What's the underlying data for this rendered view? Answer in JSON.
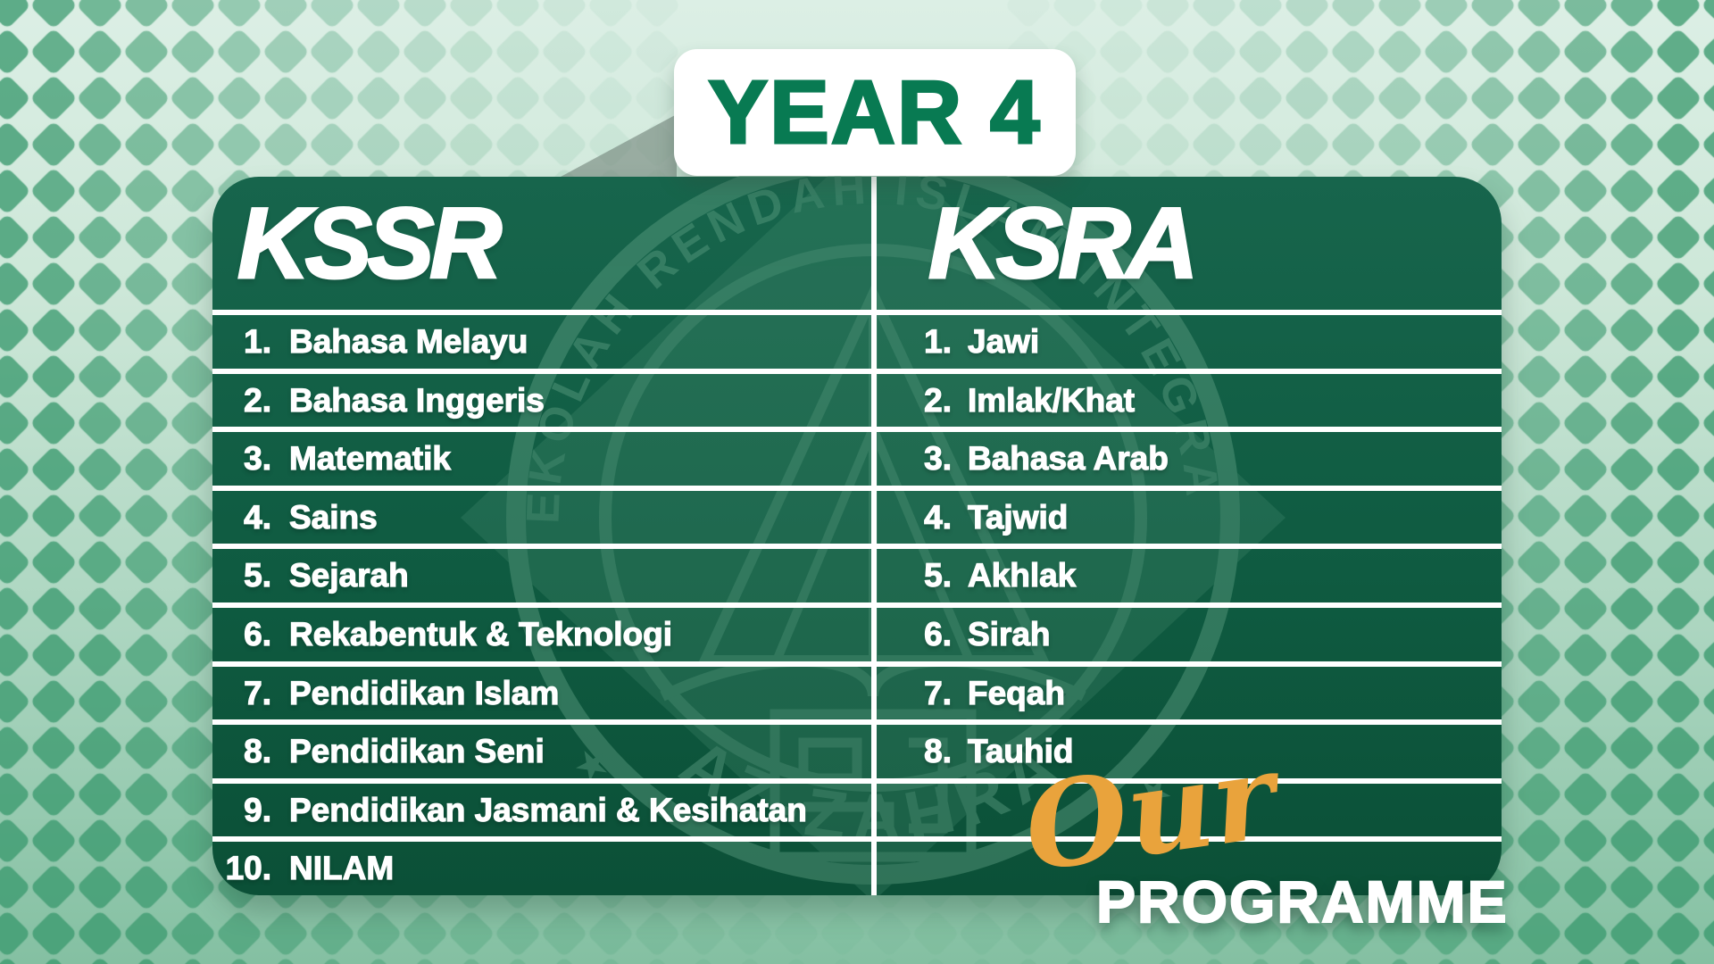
{
  "title": {
    "text": "YEAR 4"
  },
  "columns": [
    {
      "header": "KSSR",
      "items": [
        {
          "num": "1.",
          "label": "Bahasa Melayu"
        },
        {
          "num": "2.",
          "label": "Bahasa Inggeris"
        },
        {
          "num": "3.",
          "label": "Matematik"
        },
        {
          "num": "4.",
          "label": "Sains"
        },
        {
          "num": "5.",
          "label": "Sejarah"
        },
        {
          "num": "6.",
          "label": "Rekabentuk & Teknologi"
        },
        {
          "num": "7.",
          "label": "Pendidikan Islam"
        },
        {
          "num": "8.",
          "label": "Pendidikan Seni"
        },
        {
          "num": "9.",
          "label": "Pendidikan Jasmani & Kesihatan"
        },
        {
          "num": "10.",
          "label": "NILAM"
        }
      ]
    },
    {
      "header": "KSRA",
      "items": [
        {
          "num": "1.",
          "label": "Jawi"
        },
        {
          "num": "2.",
          "label": "Imlak/Khat"
        },
        {
          "num": "3.",
          "label": "Bahasa Arab"
        },
        {
          "num": "4.",
          "label": "Tajwid"
        },
        {
          "num": "5.",
          "label": "Akhlak"
        },
        {
          "num": "6.",
          "label": "Sirah"
        },
        {
          "num": "7.",
          "label": "Feqah"
        },
        {
          "num": "8.",
          "label": "Tauhid"
        }
      ]
    }
  ],
  "footer": {
    "script_word": "Our",
    "main_word": "PROGRAMME"
  },
  "watermark": {
    "arc_text_top": "SEKOLAH RENDAH ISLAM INTEGRASI",
    "arc_text_bottom": "AZ-ZAHRA",
    "star": "★"
  },
  "colors": {
    "title_green": "#087A52",
    "panel_green_top": "#17654C",
    "panel_green_bottom": "#0B5037",
    "background_light": "#CDE7D8",
    "background_deep": "#84C0A2",
    "diamond_green": "#3D9B70",
    "gold": "#E9A33C",
    "white": "#FFFFFF"
  }
}
